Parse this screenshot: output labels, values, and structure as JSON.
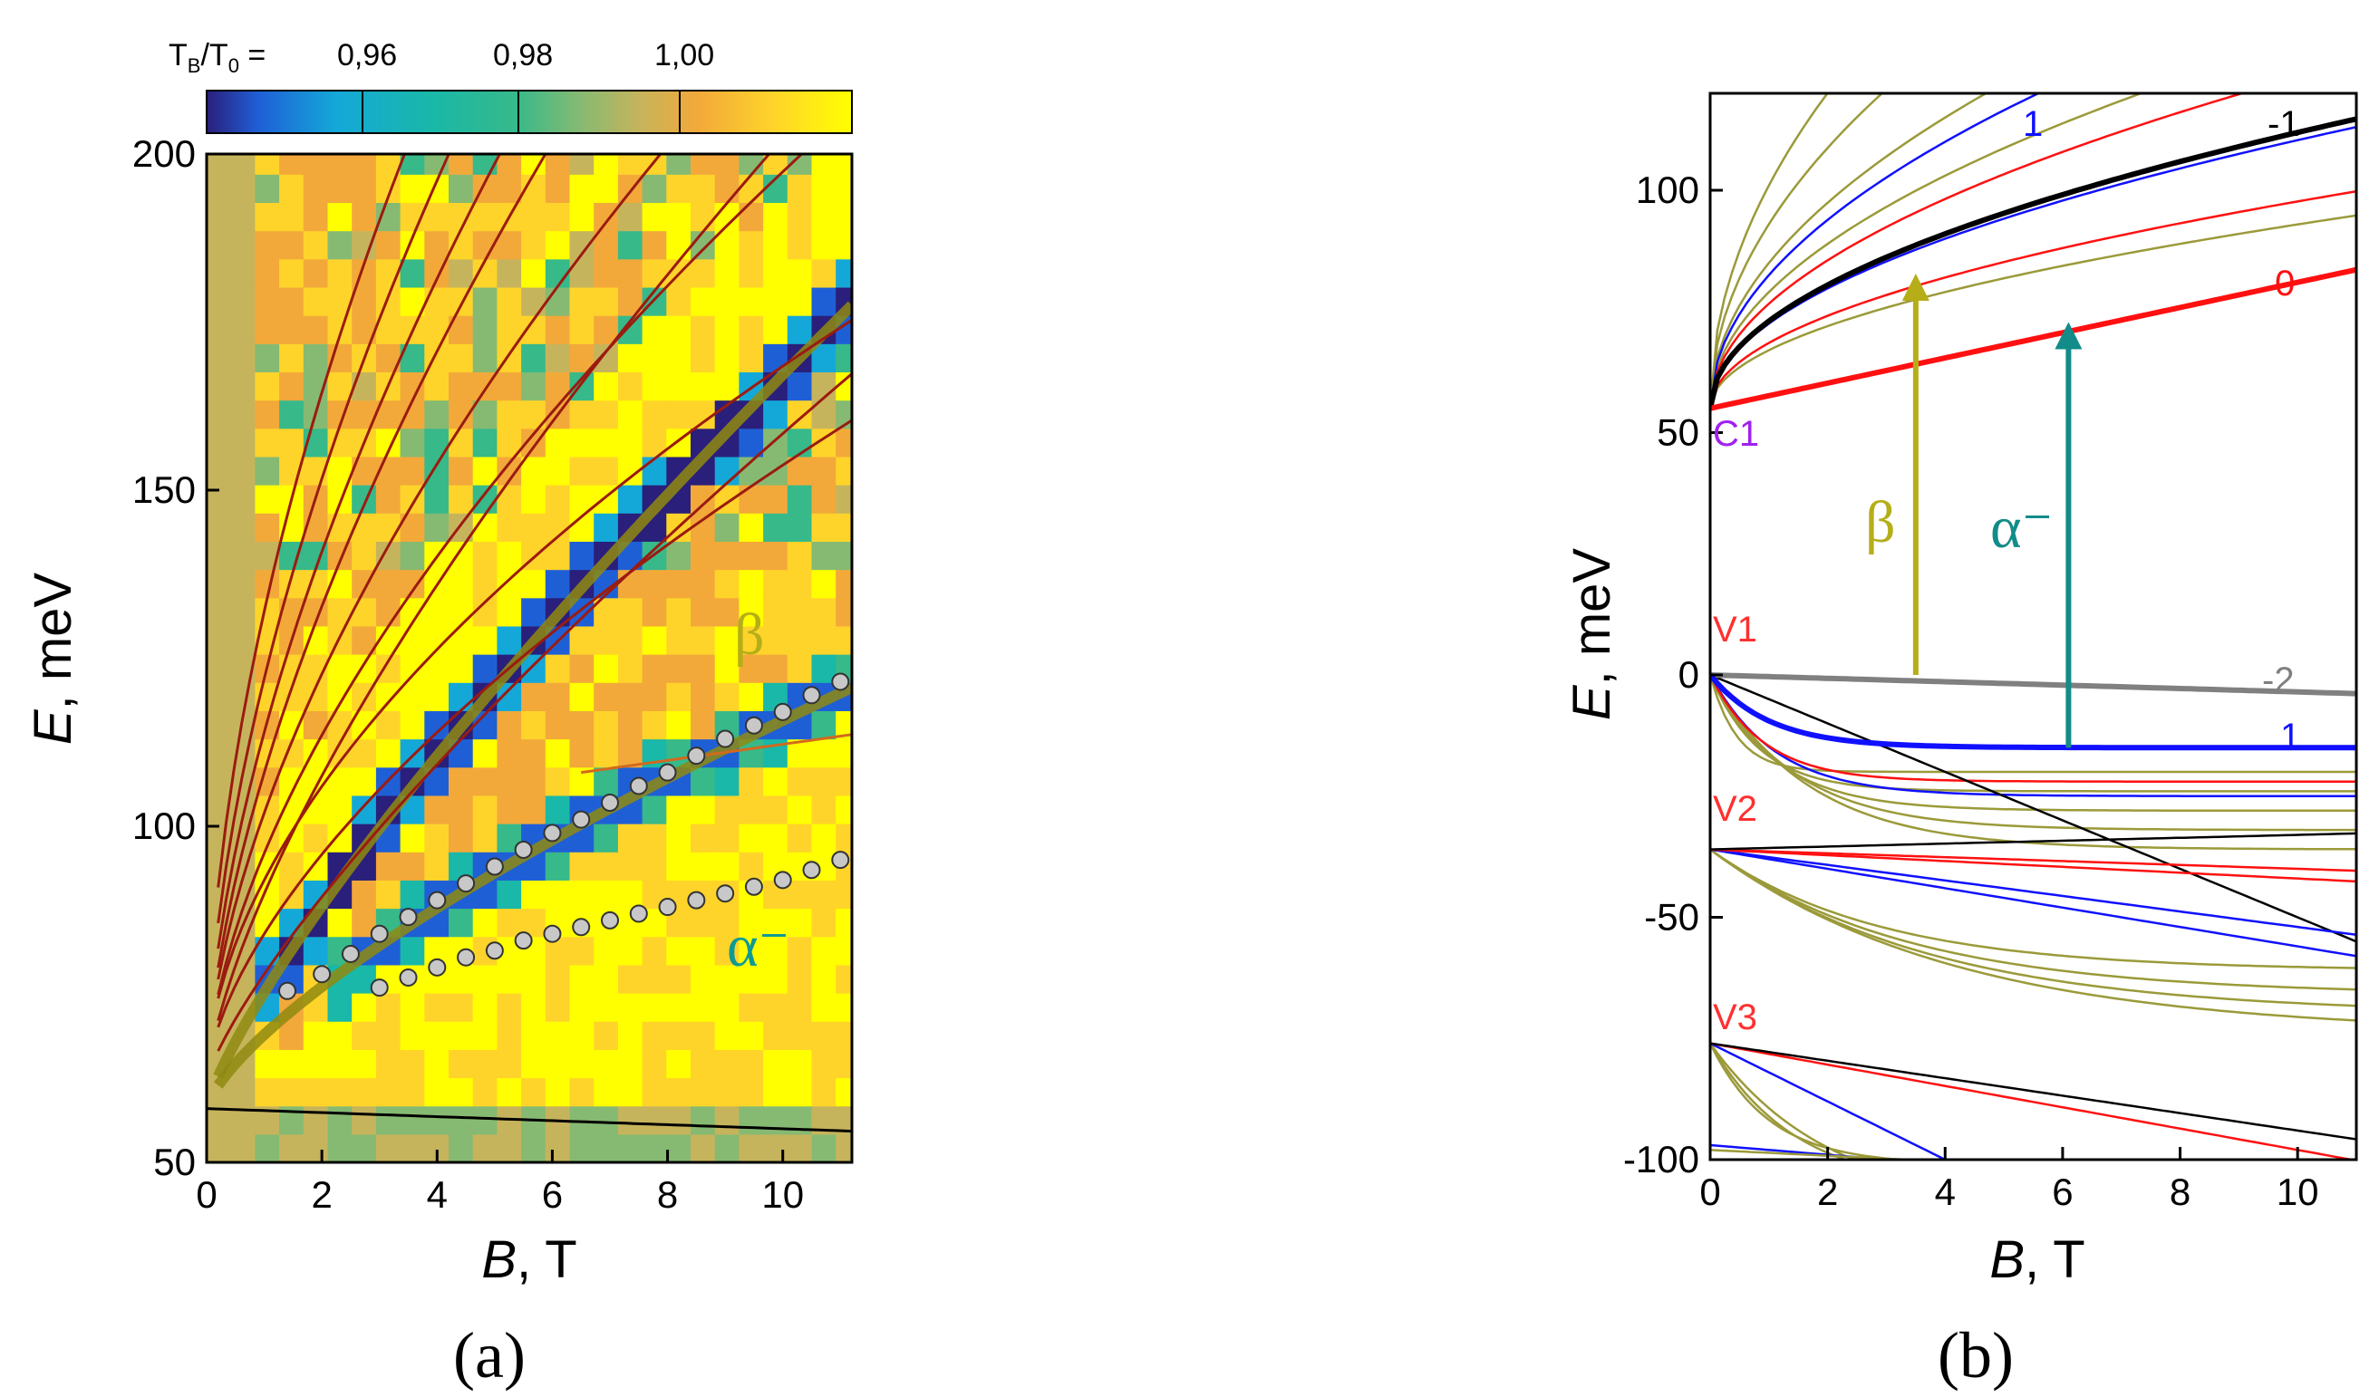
{
  "chart_data": [
    {
      "panel": "a",
      "type": "heatmap",
      "panel_label": "(a)",
      "xlabel_italic": "B",
      "xlabel_rest": ", T",
      "ylabel_italic": "E",
      "ylabel_rest": ", meV",
      "xlim": [
        0,
        11.2
      ],
      "ylim": [
        50,
        200
      ],
      "xticks": [
        0,
        2,
        4,
        6,
        8,
        10
      ],
      "yticks": [
        50,
        100,
        150,
        200
      ],
      "colorbar": {
        "label": "T_B/T_0 =",
        "label_main": "T",
        "label_sub1": "B",
        "label_mid": "/T",
        "label_sub2": "0",
        "label_eq": " =",
        "ticks": [
          "0,96",
          "0,98",
          "1,00"
        ],
        "colors": [
          "#2a1f7a",
          "#1f5fd6",
          "#14a8d8",
          "#19b8a8",
          "#37b98a",
          "#86ba72",
          "#c6b45c",
          "#f2a93a",
          "#ffd42a",
          "#ffff00"
        ]
      },
      "annotations": [
        {
          "text": "β",
          "color": "#b5ae18",
          "B": 9.2,
          "E": 130
        },
        {
          "text": "α⁻",
          "color": "#0e9a93",
          "B": 9.3,
          "E": 76
        }
      ],
      "series": [
        {
          "name": "β data",
          "marker": "circle",
          "color": "#c8c8c8",
          "x": [
            1.4,
            2.0,
            2.5,
            3.0,
            3.5,
            4.0,
            4.5,
            5.0,
            5.5,
            6.0,
            6.5,
            7.0,
            7.5,
            8.0,
            8.5,
            9.0,
            9.5,
            10.0,
            10.5,
            11.0
          ],
          "y": [
            75.5,
            78,
            81,
            84,
            86.5,
            89,
            91.5,
            94,
            96.5,
            99,
            101,
            103.5,
            106,
            108,
            110.5,
            113,
            115,
            117,
            119.5,
            121.5
          ]
        },
        {
          "name": "α⁻ data",
          "marker": "circle",
          "color": "#c8c8c8",
          "x": [
            3.0,
            3.5,
            4.0,
            4.5,
            5.0,
            5.5,
            6.0,
            6.5,
            7.0,
            7.5,
            8.0,
            8.5,
            9.0,
            9.5,
            10.0,
            10.5,
            11.0
          ],
          "y": [
            76,
            77.5,
            79,
            80.5,
            81.5,
            83,
            84,
            85,
            86,
            87,
            88,
            89,
            90,
            91,
            92,
            93.5,
            95
          ]
        }
      ]
    },
    {
      "panel": "b",
      "type": "line",
      "panel_label": "(b)",
      "xlabel_italic": "B",
      "xlabel_rest": ", T",
      "ylabel_italic": "E",
      "ylabel_rest": ", meV",
      "xlim": [
        0,
        11
      ],
      "ylim": [
        -100,
        120
      ],
      "xticks": [
        0,
        2,
        4,
        6,
        8,
        10
      ],
      "yticks": [
        -100,
        -50,
        0,
        50,
        100
      ],
      "band_labels": [
        {
          "text": "C1",
          "color": "#a020f0",
          "E": 49
        },
        {
          "text": "V1",
          "color": "#ff3030",
          "E": 8
        },
        {
          "text": "V2",
          "color": "#ff3030",
          "E": -28
        },
        {
          "text": "V3",
          "color": "#ff3030",
          "E": -69
        }
      ],
      "level_labels": [
        {
          "text": "-1",
          "color": "#000000",
          "B": 9.9,
          "E": 112
        },
        {
          "text": "1",
          "color": "#1010ff",
          "B": 5.3,
          "E": 112
        },
        {
          "text": "0",
          "color": "#ff1010",
          "B": 10.0,
          "E": 80
        },
        {
          "text": "-2",
          "color": "#808080",
          "B": 9.8,
          "E": -1
        },
        {
          "text": "1",
          "color": "#1010ff",
          "B": 9.9,
          "E": -12
        }
      ],
      "transitions": [
        {
          "label": "β",
          "color": "#b5ae18",
          "B": 3.5,
          "E_from": 0,
          "E_to": 83
        },
        {
          "label": "α⁻",
          "color": "#128c88",
          "B": 6.1,
          "E_from": -15,
          "E_to": 73
        }
      ],
      "series": [
        {
          "name": "C1 -1",
          "color": "#000000",
          "E0": 55,
          "kind": "sqrt",
          "a": 18
        },
        {
          "name": "C1 0",
          "color": "#ff1010",
          "E0": 55,
          "kind": "lin",
          "a": 2.6
        },
        {
          "name": "V1 -2",
          "color": "#808080",
          "E0": 0,
          "kind": "lin",
          "a": -0.35
        },
        {
          "name": "V1 1",
          "color": "#1010ff",
          "E0": 0,
          "kind": "sat",
          "a": -15
        }
      ]
    }
  ]
}
